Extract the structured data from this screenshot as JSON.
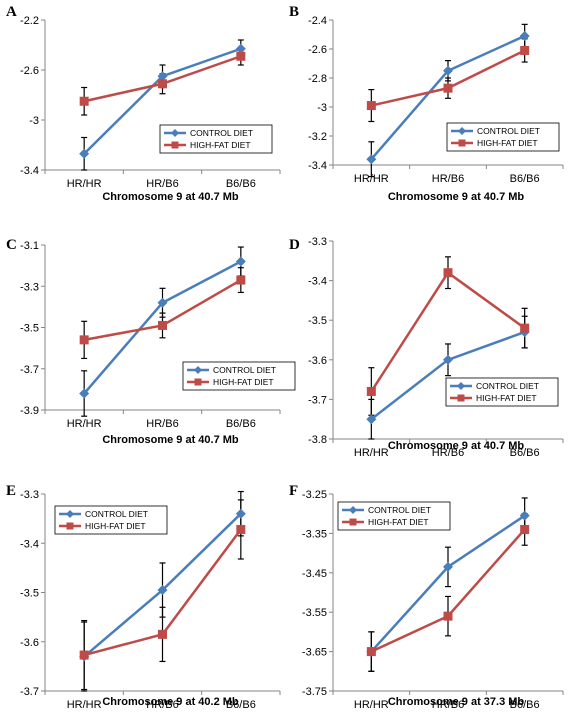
{
  "colors": {
    "control": "#4a7ebb",
    "highfat": "#be4b48",
    "axis": "#868686",
    "errorbar": "#000000"
  },
  "chart_data": [
    {
      "type": "line",
      "panel": "A",
      "categories": [
        "HR/HR",
        "HR/B6",
        "B6/B6"
      ],
      "xlabel": "Chromosome 9 at 40.7 Mb",
      "ylabel": "",
      "ylim": [
        -3.4,
        -2.2
      ],
      "yticks": [
        -3.4,
        -3.0,
        -2.6,
        -2.2
      ],
      "ytick_labels": [
        "-3.4",
        "-3",
        "-2.6",
        "-2.2"
      ],
      "legend": "right",
      "series": [
        {
          "name": "CONTROL DIET",
          "color_key": "control",
          "marker": "diamond",
          "values": [
            -3.27,
            -2.65,
            -2.43
          ],
          "errors": [
            0.13,
            0.09,
            0.07
          ]
        },
        {
          "name": "HIGH-FAT DIET",
          "color_key": "highfat",
          "marker": "square",
          "values": [
            -2.85,
            -2.71,
            -2.49
          ],
          "errors": [
            0.11,
            0.08,
            0.07
          ]
        }
      ]
    },
    {
      "type": "line",
      "panel": "B",
      "categories": [
        "HR/HR",
        "HR/B6",
        "B6/B6"
      ],
      "xlabel": "Chromosome 9 at 40.7 Mb",
      "ylabel": "",
      "ylim": [
        -3.4,
        -2.4
      ],
      "yticks": [
        -3.4,
        -3.2,
        -3.0,
        -2.8,
        -2.6,
        -2.4
      ],
      "ytick_labels": [
        "-3.4",
        "-3.2",
        "-3",
        "-2.8",
        "-2.6",
        "-2.4"
      ],
      "legend": "right",
      "series": [
        {
          "name": "CONTROL DIET",
          "color_key": "control",
          "marker": "diamond",
          "values": [
            -3.36,
            -2.75,
            -2.51
          ],
          "errors": [
            0.12,
            0.07,
            0.08
          ]
        },
        {
          "name": "HIGH-FAT DIET",
          "color_key": "highfat",
          "marker": "square",
          "values": [
            -2.99,
            -2.87,
            -2.61
          ],
          "errors": [
            0.11,
            0.07,
            0.08
          ]
        }
      ]
    },
    {
      "type": "line",
      "panel": "C",
      "categories": [
        "HR/HR",
        "HR/B6",
        "B6/B6"
      ],
      "xlabel": "Chromosome 9 at 40.7 Mb",
      "ylabel": "",
      "ylim": [
        -3.9,
        -3.1
      ],
      "yticks": [
        -3.9,
        -3.7,
        -3.5,
        -3.3,
        -3.1
      ],
      "ytick_labels": [
        "-3.9",
        "-3.7",
        "-3.5",
        "-3.3",
        "-3.1"
      ],
      "legend": "right",
      "series": [
        {
          "name": "CONTROL DIET",
          "color_key": "control",
          "marker": "diamond",
          "values": [
            -3.82,
            -3.38,
            -3.18
          ],
          "errors": [
            0.11,
            0.07,
            0.07
          ]
        },
        {
          "name": "HIGH-FAT DIET",
          "color_key": "highfat",
          "marker": "square",
          "values": [
            -3.56,
            -3.49,
            -3.27
          ],
          "errors": [
            0.09,
            0.06,
            0.06
          ]
        }
      ]
    },
    {
      "type": "line",
      "panel": "D",
      "categories": [
        "HR/HR",
        "HR/B6",
        "B6/B6"
      ],
      "xlabel": "Chromosome 9 at 40.7 Mb",
      "ylabel": "",
      "ylim": [
        -3.8,
        -3.3
      ],
      "yticks": [
        -3.8,
        -3.7,
        -3.6,
        -3.5,
        -3.4,
        -3.3
      ],
      "ytick_labels": [
        "-3.8",
        "-3.7",
        "-3.6",
        "-3.5",
        "-3.4",
        "-3.3"
      ],
      "legend": "right",
      "series": [
        {
          "name": "CONTROL DIET",
          "color_key": "control",
          "marker": "diamond",
          "values": [
            -3.75,
            -3.6,
            -3.53
          ],
          "errors": [
            0.05,
            0.04,
            0.04
          ]
        },
        {
          "name": "HIGH-FAT DIET",
          "color_key": "highfat",
          "marker": "square",
          "values": [
            -3.68,
            -3.38,
            -3.52
          ],
          "errors": [
            0.06,
            0.04,
            0.05
          ]
        }
      ]
    },
    {
      "type": "line",
      "panel": "E",
      "categories": [
        "HR/HR",
        "HR/B6",
        "B6/B6"
      ],
      "xlabel": "Chromosome 9 at 40.2 Mb",
      "ylabel": "",
      "ylim": [
        -3.7,
        -3.3
      ],
      "yticks": [
        -3.7,
        -3.6,
        -3.5,
        -3.4,
        -3.3
      ],
      "ytick_labels": [
        "-3.7",
        "-3.6",
        "-3.5",
        "-3.4",
        "-3.3"
      ],
      "legend": "top-left",
      "series": [
        {
          "name": "CONTROL DIET",
          "color_key": "control",
          "marker": "diamond",
          "values": [
            -3.63,
            -3.495,
            -3.34
          ],
          "errors": [
            0.07,
            0.055,
            0.045
          ]
        },
        {
          "name": "HIGH-FAT DIET",
          "color_key": "highfat",
          "marker": "square",
          "values": [
            -3.627,
            -3.585,
            -3.372
          ],
          "errors": [
            0.07,
            0.055,
            0.06
          ]
        }
      ]
    },
    {
      "type": "line",
      "panel": "F",
      "categories": [
        "HR/HR",
        "HR/B6",
        "B6/B6"
      ],
      "xlabel": "Chromosome 9 at 37.3 Mb",
      "ylabel": "",
      "ylim": [
        -3.75,
        -3.25
      ],
      "yticks": [
        -3.75,
        -3.65,
        -3.55,
        -3.45,
        -3.35,
        -3.25
      ],
      "ytick_labels": [
        "-3.75",
        "-3.65",
        "-3.55",
        "-3.45",
        "-3.35",
        "-3.25"
      ],
      "legend": "top-left",
      "series": [
        {
          "name": "CONTROL DIET",
          "color_key": "control",
          "marker": "diamond",
          "values": [
            -3.65,
            -3.435,
            -3.305
          ],
          "errors": [
            0.05,
            0.05,
            0.045
          ]
        },
        {
          "name": "HIGH-FAT DIET",
          "color_key": "highfat",
          "marker": "square",
          "values": [
            -3.65,
            -3.56,
            -3.34
          ],
          "errors": [
            0.05,
            0.05,
            0.04
          ]
        }
      ]
    }
  ]
}
